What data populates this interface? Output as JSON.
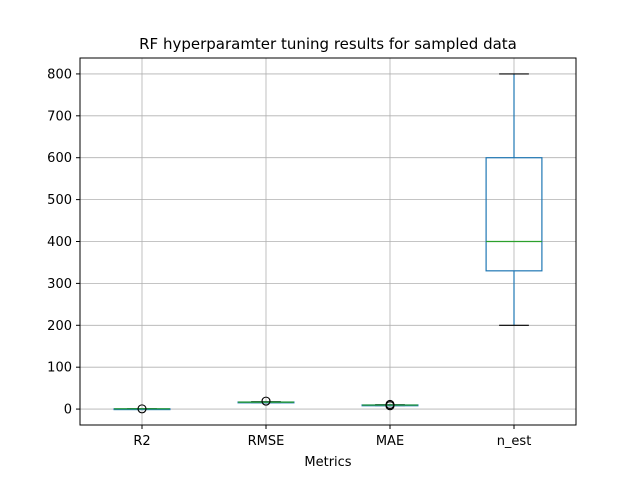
{
  "chart_data": {
    "type": "box",
    "title": "RF hyperparamter tuning results for sampled data",
    "xlabel": "Metrics",
    "ylabel": "",
    "ylim": [
      -38,
      838
    ],
    "yticks": [
      0,
      100,
      200,
      300,
      400,
      500,
      600,
      700,
      800
    ],
    "grid": true,
    "legend": "none",
    "categories": [
      "R2",
      "RMSE",
      "MAE",
      "n_est"
    ],
    "boxes": [
      {
        "category": "R2",
        "whisker_low": 0.2,
        "q1": 0.5,
        "median": 0.6,
        "q3": 0.7,
        "whisker_high": 1.0,
        "outliers": [
          0.5
        ]
      },
      {
        "category": "RMSE",
        "whisker_low": 15.5,
        "q1": 16.3,
        "median": 16.6,
        "q3": 16.9,
        "whisker_high": 17.5,
        "outliers": [
          19
        ]
      },
      {
        "category": "MAE",
        "whisker_low": 8.5,
        "q1": 9.3,
        "median": 9.6,
        "q3": 9.9,
        "whisker_high": 10.5,
        "outliers": [
          11,
          8
        ]
      },
      {
        "category": "n_est",
        "whisker_low": 200,
        "q1": 330,
        "median": 400,
        "q3": 600,
        "whisker_high": 800,
        "outliers": []
      }
    ],
    "colors": {
      "box": "#1f77b4",
      "median": "#2ca02c",
      "whisker_cap": "#000000",
      "grid": "#b0b0b0",
      "outlier": "#000000"
    }
  }
}
